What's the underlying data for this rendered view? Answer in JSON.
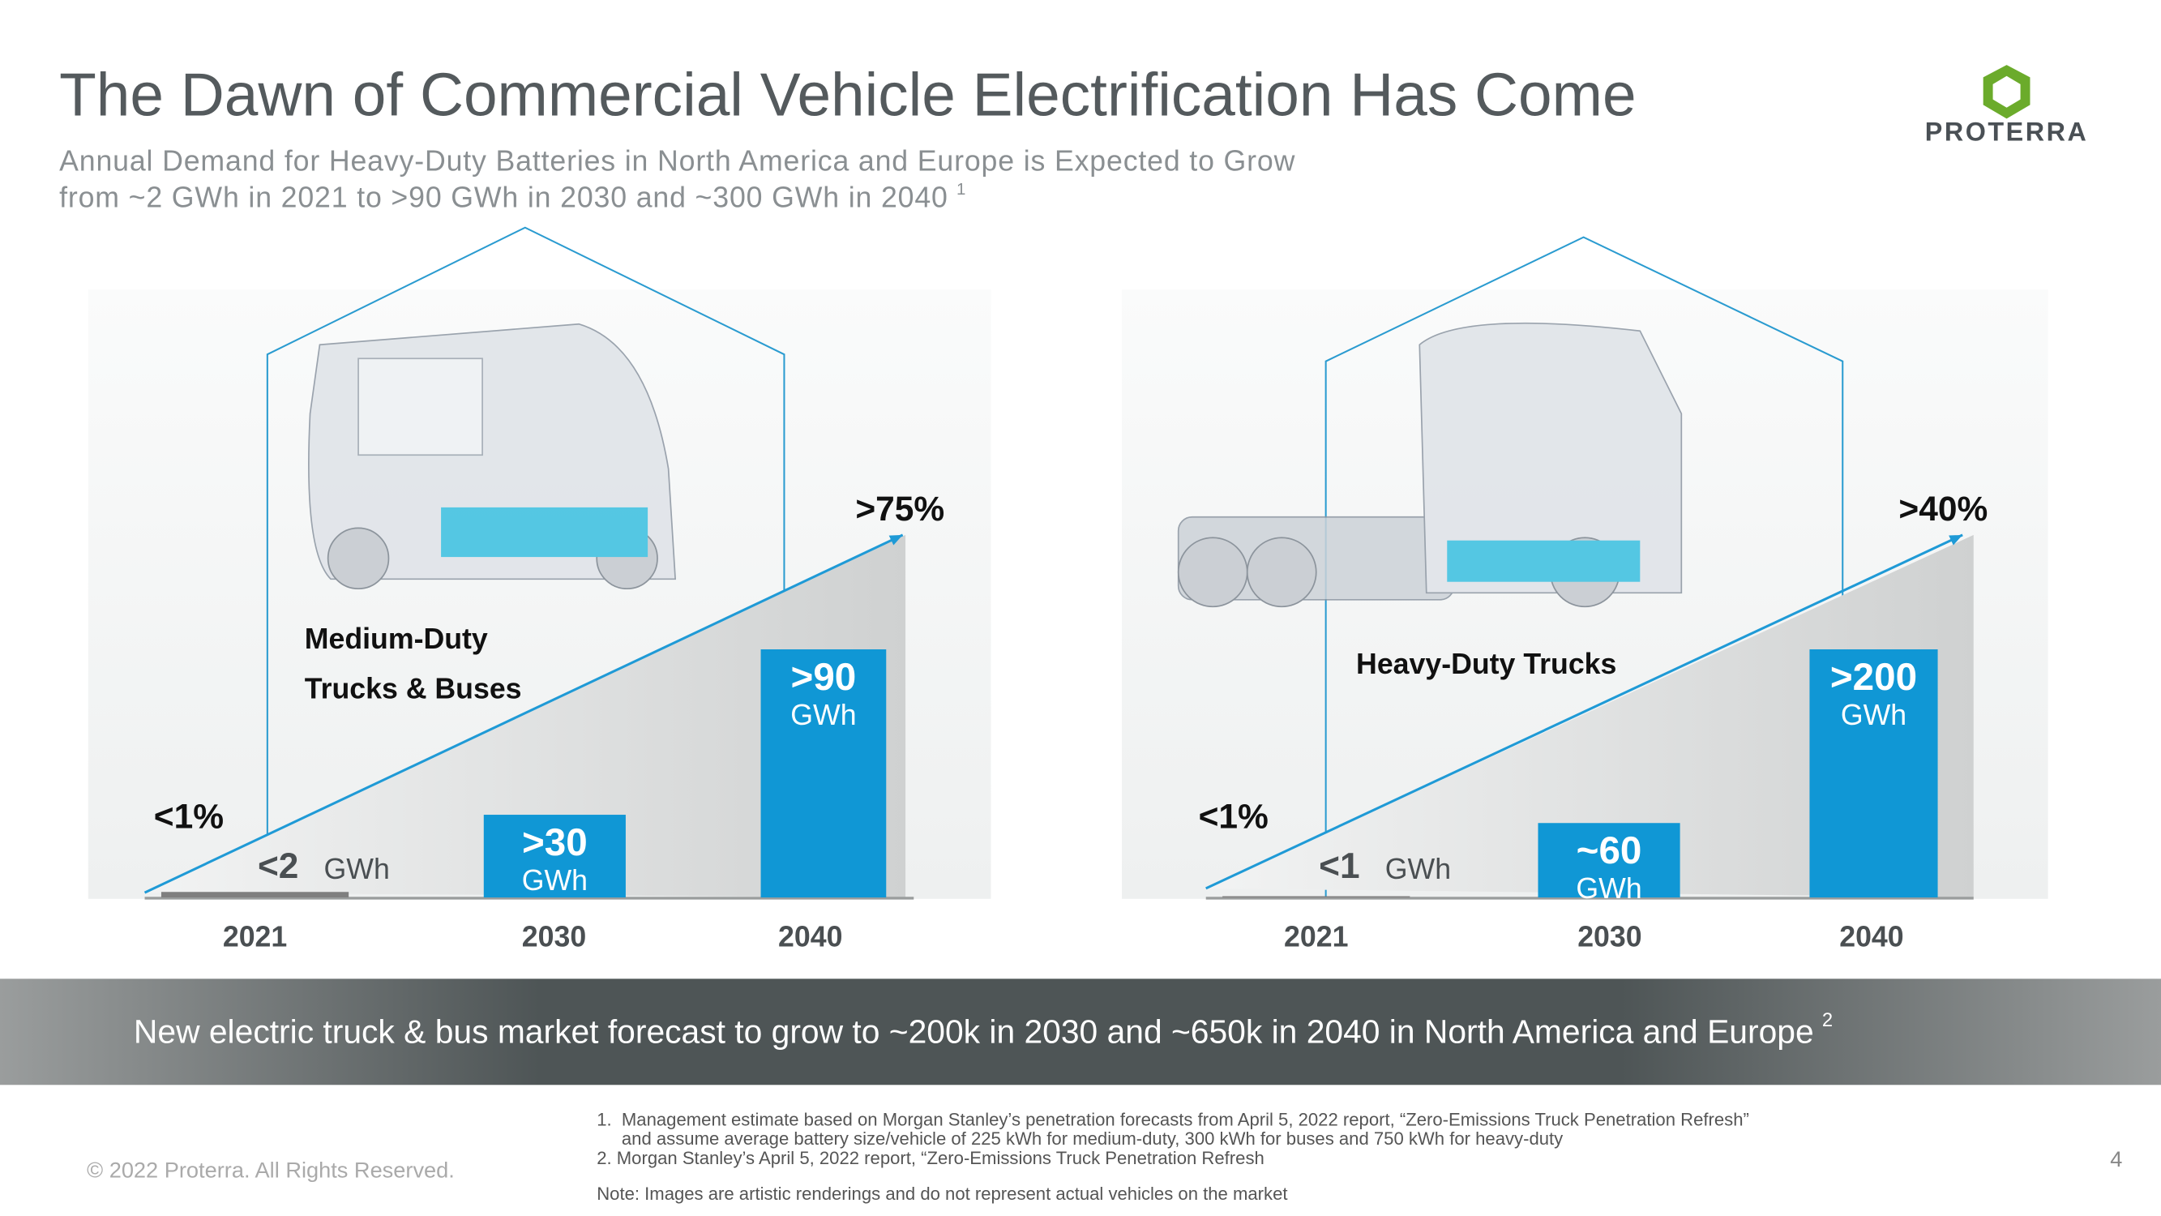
{
  "header": {
    "title": "The Dawn of Commercial Vehicle Electrification Has Come",
    "subtitle_lines": [
      "Annual Demand for Heavy-Duty Batteries in North America and Europe is Expected to Grow",
      "from ~2 GWh in 2021 to >90 GWh in 2030 and ~300 GWh in 2040"
    ],
    "subtitle_note": "1",
    "logo": "PROTERRA"
  },
  "chart_data": [
    {
      "type": "bar",
      "label_lines": [
        "Medium-Duty",
        "Trucks & Buses"
      ],
      "categories": [
        "2021",
        "2030",
        "2040"
      ],
      "values": [
        2,
        30,
        90
      ],
      "value_labels": [
        "<2",
        ">30",
        ">90"
      ],
      "unit": "GWh",
      "colors": [
        "#7f7f7f",
        "#1097d5",
        "#1097d5"
      ],
      "penetration": {
        "values": [
          1,
          75
        ],
        "value_labels": [
          "<1%",
          ">75%"
        ],
        "color": "#1f9ad6"
      }
    },
    {
      "type": "bar",
      "label_lines": [
        "Heavy-Duty Trucks"
      ],
      "categories": [
        "2021",
        "2030",
        "2040"
      ],
      "values": [
        1,
        60,
        200
      ],
      "value_labels": [
        "<1",
        "~60",
        ">200"
      ],
      "unit": "GWh",
      "colors": [
        "#7f7f7f",
        "#1097d5",
        "#1097d5"
      ],
      "penetration": {
        "values": [
          1,
          40
        ],
        "value_labels": [
          "<1%",
          ">40%"
        ],
        "color": "#1f9ad6"
      }
    }
  ],
  "banner": {
    "text": "New electric truck & bus market forecast to grow to ~200k in 2030 and ~650k in 2040 in North America and Europe",
    "note": "2"
  },
  "footer": {
    "copyright": "© 2022 Proterra. All Rights Reserved.",
    "footnotes": [
      "1.  Management estimate based on Morgan Stanley’s penetration forecasts from April 5, 2022 report, “Zero-Emissions Truck Penetration Refresh”",
      "     and assume average battery size/vehicle of 225 kWh for medium-duty, 300 kWh for buses and 750 kWh for heavy-duty",
      "2. Morgan Stanley’s April 5, 2022 report, “Zero-Emissions Truck Penetration Refresh"
    ],
    "note": "Note: Images are artistic renderings and do not represent actual vehicles on the market",
    "page": "4"
  }
}
